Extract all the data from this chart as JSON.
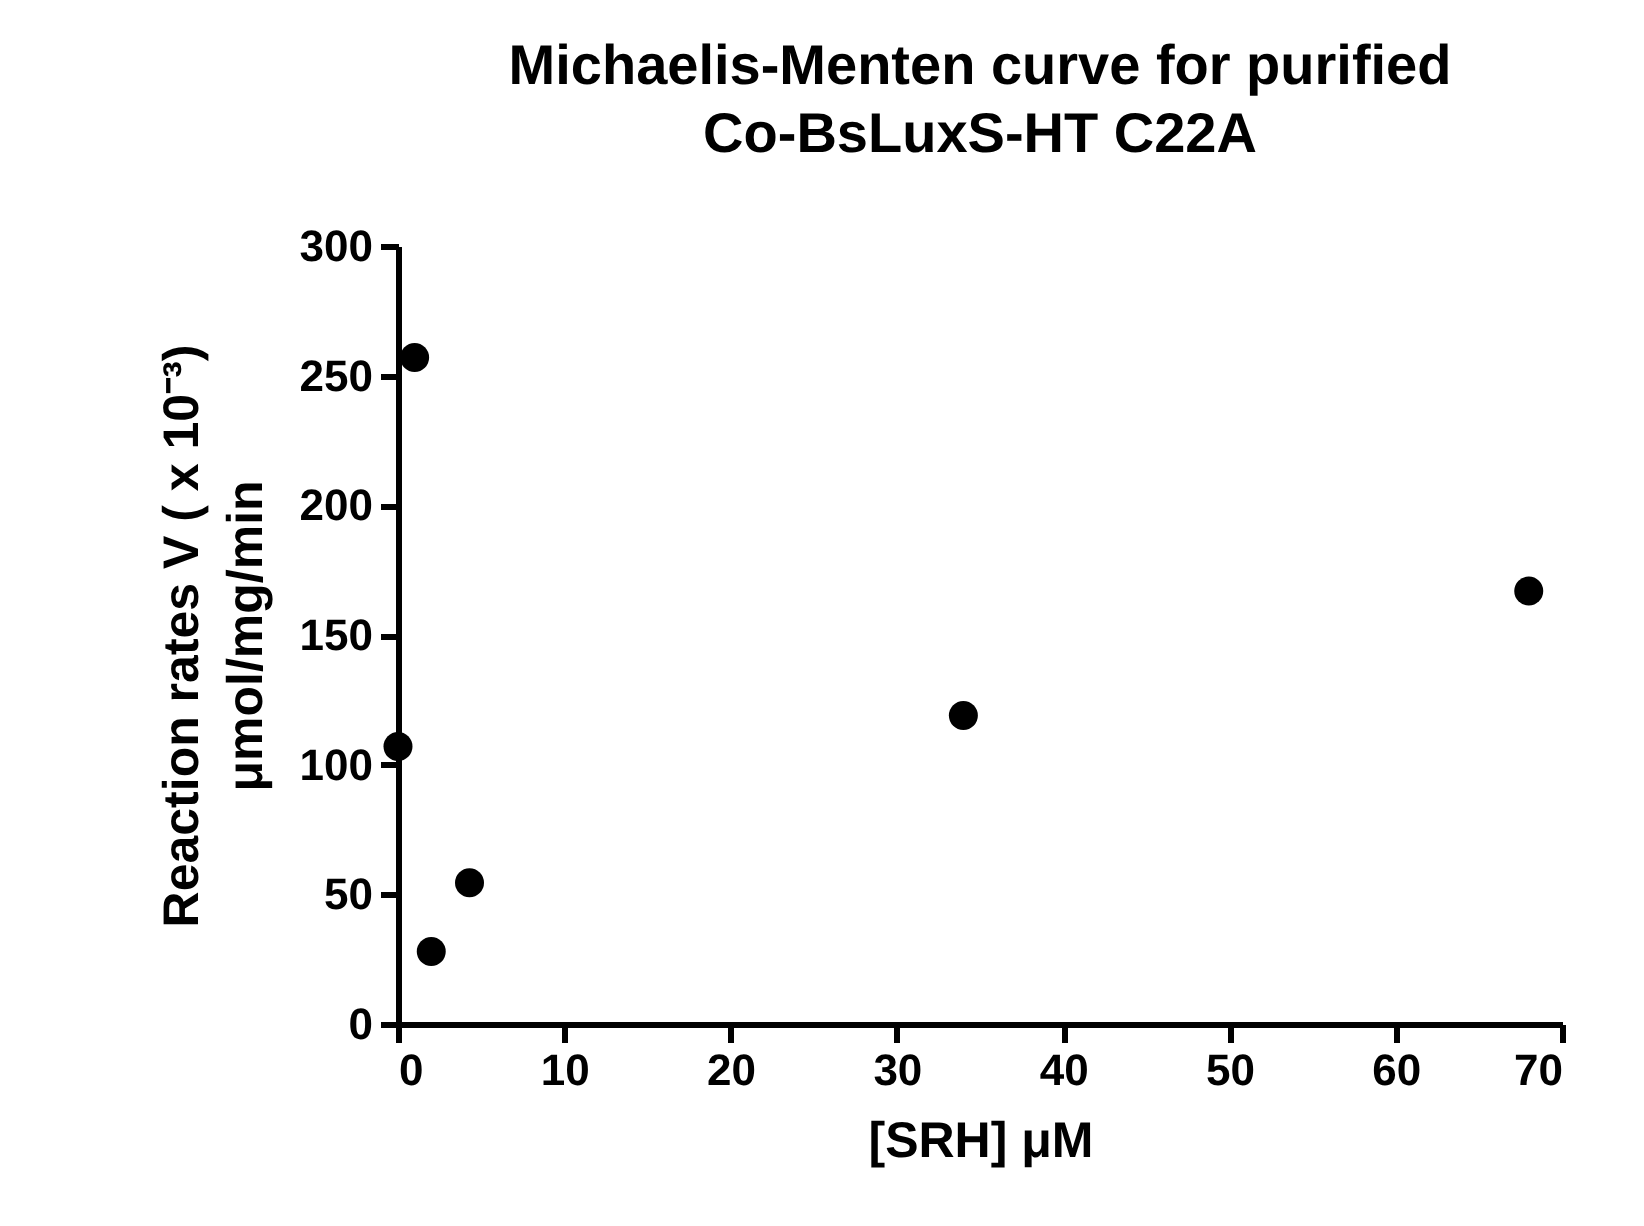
{
  "chart_data": {
    "type": "scatter",
    "title": "Michaelis-Menten curve for purified\nCo-BsLuxS-HT C22A",
    "xlabel": "[SRH] μM",
    "ylabel": "Reaction rates V ( x 10⁻³)\nμmol/mg/min",
    "x": [
      0,
      1,
      2,
      4.3,
      34,
      68
    ],
    "series": [
      {
        "color": "#000000",
        "values": [
          107,
          257,
          28,
          54.5,
          119,
          167
        ]
      }
    ],
    "xlim": [
      0,
      70
    ],
    "xticks": [
      0,
      10,
      20,
      30,
      40,
      50,
      60,
      70
    ],
    "ylim": [
      0,
      300
    ],
    "yticks": [
      0,
      50,
      100,
      150,
      200,
      250,
      300
    ],
    "grid": false,
    "marker": "circle"
  }
}
